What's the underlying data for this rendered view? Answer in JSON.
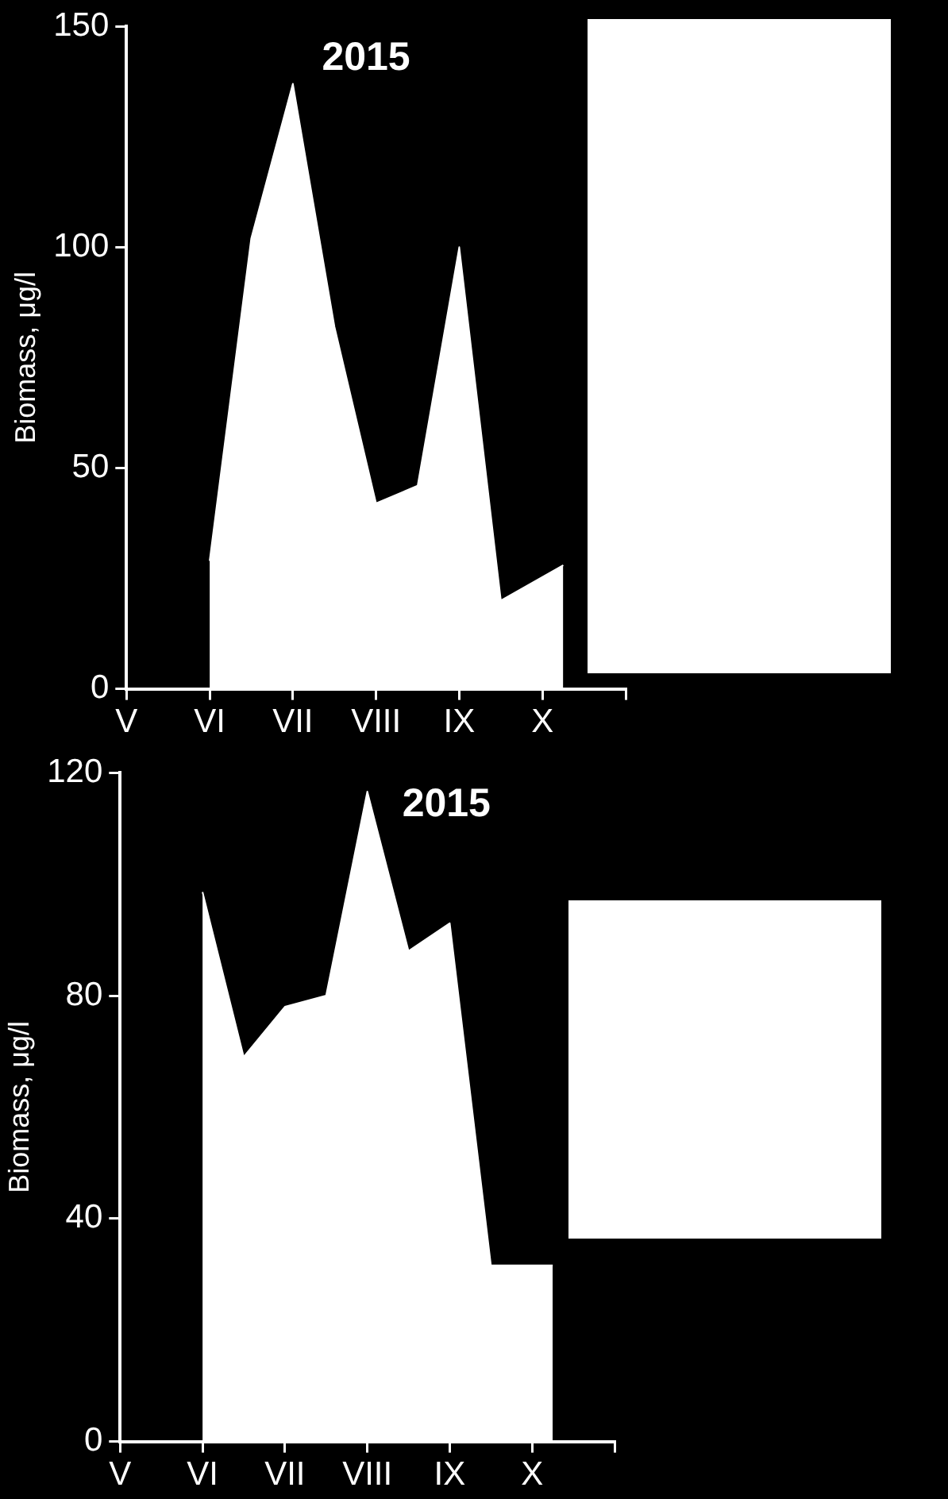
{
  "chart_data": [
    {
      "type": "area",
      "title": "2015",
      "ylabel": "Biomass, μg/l",
      "categories": [
        "V",
        null,
        null,
        null,
        "VI",
        null,
        null,
        null,
        "VII",
        null,
        null,
        null,
        "VIII",
        null,
        null,
        null,
        "IX",
        null,
        null,
        null,
        "X",
        null,
        null,
        null,
        null
      ],
      "series": [
        {
          "color": "#ffffff",
          "values": [
            null,
            null,
            null,
            null,
            29,
            null,
            102,
            null,
            137,
            null,
            82,
            null,
            42,
            null,
            46,
            null,
            100,
            null,
            20,
            null,
            null,
            28,
            null,
            null,
            null
          ]
        }
      ],
      "ylim": [
        0,
        150
      ],
      "yticks": [
        0,
        50,
        100,
        150
      ],
      "grid": false,
      "legend": false
    },
    {
      "type": "area",
      "title": "2015",
      "ylabel": "Biomass, μg/l",
      "categories": [
        "V",
        null,
        null,
        null,
        "VI",
        null,
        null,
        null,
        "VII",
        null,
        null,
        null,
        "VIII",
        null,
        null,
        null,
        "IX",
        null,
        null,
        null,
        "X",
        null,
        null,
        null,
        null
      ],
      "series": [
        {
          "color": "#ffffff",
          "values": [
            null,
            null,
            null,
            null,
            98.6,
            null,
            69,
            null,
            78,
            null,
            80,
            null,
            116.6,
            null,
            88,
            null,
            93,
            null,
            31.6,
            null,
            null,
            31.6,
            null,
            null,
            null
          ]
        }
      ],
      "ylim": [
        0,
        120
      ],
      "yticks": [
        0,
        40,
        80,
        120
      ],
      "grid": false,
      "legend": false
    }
  ]
}
